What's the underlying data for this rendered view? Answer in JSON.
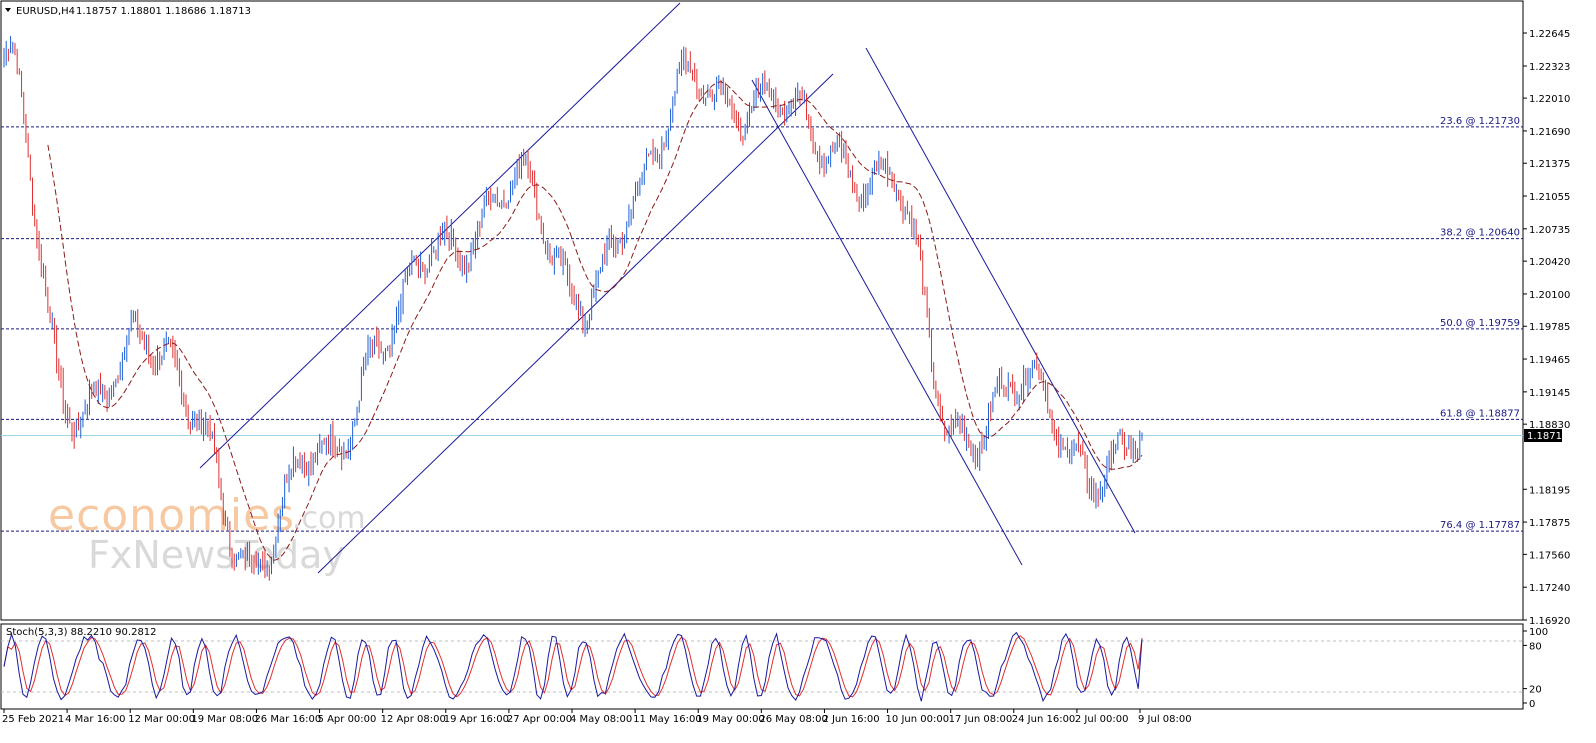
{
  "header": {
    "symbol_label": "EURUSD,H4",
    "ohlc": "1.18757 1.18801 1.18686 1.18713"
  },
  "watermark": {
    "line1": "economies",
    "line1_suffix": ".com",
    "line2": "FxNewsToday"
  },
  "colors": {
    "bull": "#1f5fd6",
    "bear": "#e03030",
    "ma": "#8b1a1a",
    "trend": "#1a1a9a",
    "fib": "#1a1a80",
    "price_line": "#9fd3e6",
    "stoch_main": "#1a1aa0",
    "stoch_signal": "#e03030"
  },
  "chart_data": [
    {
      "type": "line",
      "title": "EURUSD,H4",
      "series": [
        {
          "name": "EURUSD",
          "kind": "price",
          "x": [
            "25 Feb 2021",
            "4 Mar 16:00",
            "12 Mar 00:00",
            "19 Mar 08:00",
            "26 Mar 16:00",
            "5 Apr 00:00",
            "12 Apr 08:00",
            "19 Apr 16:00",
            "27 Apr 00:00",
            "4 May 08:00",
            "11 May 16:00",
            "19 May 00:00",
            "26 May 08:00",
            "2 Jun 16:00",
            "10 Jun 00:00",
            "17 Jun 08:00",
            "24 Jun 16:00",
            "2 Jul 00:00",
            "9 Jul 08:00"
          ],
          "y": [
            1.224,
            1.19,
            1.196,
            1.19,
            1.174,
            1.186,
            1.196,
            1.206,
            1.212,
            1.201,
            1.21,
            1.223,
            1.219,
            1.216,
            1.212,
            1.188,
            1.192,
            1.185,
            1.1871
          ]
        }
      ],
      "y_ticks": [
        "1.22645",
        "1.22323",
        "1.22010",
        "1.21690",
        "1.21375",
        "1.21055",
        "1.20735",
        "1.20420",
        "1.20100",
        "1.19785",
        "1.19465",
        "1.19145",
        "1.18830",
        "1.18195",
        "1.17875",
        "1.17560",
        "1.17240",
        "1.16920"
      ],
      "current_price": "1.18713",
      "fib_levels": [
        {
          "label": "23.6 @ 1.21730",
          "value": 1.2173
        },
        {
          "label": "38.2 @ 1.20640",
          "value": 1.2064
        },
        {
          "label": "50.0 @ 1.19759",
          "value": 1.19759
        },
        {
          "label": "61.8 @ 1.18877",
          "value": 1.18877
        },
        {
          "label": "76.4 @ 1.17787",
          "value": 1.17787
        }
      ],
      "ylim": [
        1.1692,
        1.2264
      ]
    },
    {
      "type": "line",
      "title": "Stoch(5,3,3) 88.2210 90.2812",
      "y_ticks": [
        "100",
        "80",
        "20",
        "0"
      ],
      "levels": [
        80,
        20
      ],
      "ylim": [
        0,
        100
      ],
      "series": [
        {
          "name": "Stoch main",
          "last": 88.221
        },
        {
          "name": "Stoch signal",
          "last": 90.2812
        }
      ]
    }
  ],
  "x_ticks": [
    "25 Feb 2021",
    "4 Mar 16:00",
    "12 Mar 00:00",
    "19 Mar 08:00",
    "26 Mar 16:00",
    "5 Apr 00:00",
    "12 Apr 08:00",
    "19 Apr 16:00",
    "27 Apr 00:00",
    "4 May 08:00",
    "11 May 16:00",
    "19 May 00:00",
    "26 May 08:00",
    "2 Jun 16:00",
    "10 Jun 00:00",
    "17 Jun 08:00",
    "24 Jun 16:00",
    "2 Jul 00:00",
    "9 Jul 08:00"
  ]
}
